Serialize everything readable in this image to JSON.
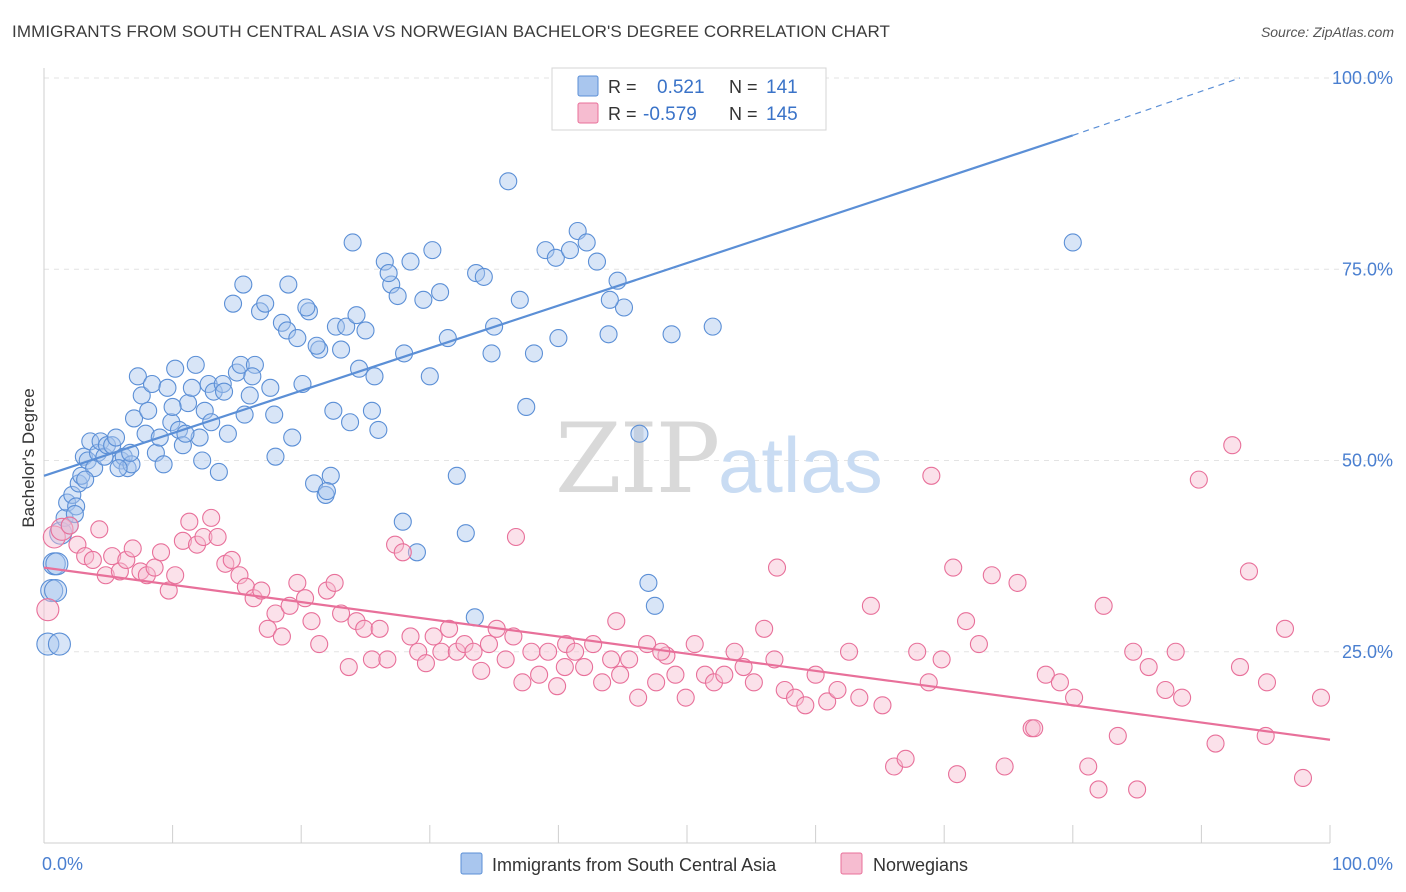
{
  "title": "IMMIGRANTS FROM SOUTH CENTRAL ASIA VS NORWEGIAN BACHELOR'S DEGREE CORRELATION CHART",
  "source": "Source: ZipAtlas.com",
  "watermark": {
    "zip": "ZIP",
    "atlas": "atlas"
  },
  "legend_top": {
    "rows": [
      {
        "r_label": "R =",
        "r_value": "0.521",
        "n_label": "N =",
        "n_value": "141",
        "color": "#7aaae8"
      },
      {
        "r_label": "R =",
        "r_value": "-0.579",
        "n_label": "N =",
        "n_value": "145",
        "color": "#f4a7c0"
      }
    ]
  },
  "legend_bottom": [
    {
      "label": "Immigrants from South Central Asia",
      "color": "#7aaae8"
    },
    {
      "label": "Norwegians",
      "color": "#f4a7c0"
    }
  ],
  "chart_data": {
    "type": "scatter",
    "ylabel": "Bachelor's Degree",
    "xlim": [
      0,
      100
    ],
    "ylim": [
      0,
      100
    ],
    "x_tick_labels": [
      "0.0%",
      "100.0%"
    ],
    "y_ticks": [
      25,
      50,
      75,
      100
    ],
    "y_tick_labels": [
      "25.0%",
      "50.0%",
      "75.0%",
      "100.0%"
    ],
    "grid": true,
    "series": [
      {
        "name": "Immigrants from South Central Asia",
        "color": "#5b8fd6",
        "fill": "#a9c6ee",
        "trend": {
          "x0": 0,
          "y0": 48,
          "x1": 80,
          "y1": 92.5,
          "dash_to_x": 93,
          "dash_to_y": 100
        },
        "points": [
          [
            0.3,
            26
          ],
          [
            0.6,
            33
          ],
          [
            0.8,
            36.5
          ],
          [
            1,
            36.5
          ],
          [
            1.3,
            40.5
          ],
          [
            1.6,
            42.5
          ],
          [
            1.8,
            44.5
          ],
          [
            2,
            41.5
          ],
          [
            2.2,
            45.5
          ],
          [
            2.5,
            44
          ],
          [
            2.7,
            47
          ],
          [
            2.9,
            48
          ],
          [
            3.1,
            50.5
          ],
          [
            3.4,
            50
          ],
          [
            3.6,
            52.5
          ],
          [
            3.9,
            49
          ],
          [
            4.2,
            51
          ],
          [
            4.4,
            52.5
          ],
          [
            4.7,
            50.5
          ],
          [
            4.9,
            52
          ],
          [
            5.3,
            52
          ],
          [
            5.6,
            53
          ],
          [
            6,
            50
          ],
          [
            6.2,
            50.5
          ],
          [
            6.5,
            49
          ],
          [
            6.8,
            49.5
          ],
          [
            7,
            55.5
          ],
          [
            7.3,
            61
          ],
          [
            7.6,
            58.5
          ],
          [
            7.9,
            53.5
          ],
          [
            8.1,
            56.5
          ],
          [
            8.4,
            60
          ],
          [
            8.7,
            51
          ],
          [
            9,
            53
          ],
          [
            9.3,
            49.5
          ],
          [
            9.6,
            59.5
          ],
          [
            9.9,
            55
          ],
          [
            10.2,
            62
          ],
          [
            10.5,
            54
          ],
          [
            10.8,
            52
          ],
          [
            11.2,
            57.5
          ],
          [
            11.5,
            59.5
          ],
          [
            11.8,
            62.5
          ],
          [
            12.1,
            53
          ],
          [
            12.5,
            56.5
          ],
          [
            12.8,
            60
          ],
          [
            13.2,
            59
          ],
          [
            13.6,
            48.5
          ],
          [
            13.9,
            60
          ],
          [
            14.3,
            53.5
          ],
          [
            14.7,
            70.5
          ],
          [
            15,
            61.5
          ],
          [
            15.3,
            62.5
          ],
          [
            15.6,
            56
          ],
          [
            16,
            58.5
          ],
          [
            16.4,
            62.5
          ],
          [
            16.8,
            69.5
          ],
          [
            17.2,
            70.5
          ],
          [
            17.6,
            59.5
          ],
          [
            18,
            50.5
          ],
          [
            18.5,
            68
          ],
          [
            18.9,
            67
          ],
          [
            19.3,
            53
          ],
          [
            19.7,
            66
          ],
          [
            20.1,
            60
          ],
          [
            20.6,
            69.5
          ],
          [
            21,
            47
          ],
          [
            21.4,
            64.5
          ],
          [
            21.9,
            45.5
          ],
          [
            22.3,
            48
          ],
          [
            22.7,
            67.5
          ],
          [
            23.1,
            64.5
          ],
          [
            23.5,
            67.5
          ],
          [
            24,
            78.5
          ],
          [
            24.5,
            62
          ],
          [
            25,
            67
          ],
          [
            25.5,
            56.5
          ],
          [
            26,
            54
          ],
          [
            26.5,
            76
          ],
          [
            27,
            73
          ],
          [
            27.5,
            71.5
          ],
          [
            28,
            64
          ],
          [
            28.5,
            76
          ],
          [
            29,
            38
          ],
          [
            29.5,
            71
          ],
          [
            30.2,
            77.5
          ],
          [
            30.8,
            72
          ],
          [
            31.4,
            66
          ],
          [
            32.1,
            48
          ],
          [
            32.8,
            40.5
          ],
          [
            33.6,
            74.5
          ],
          [
            34.2,
            74
          ],
          [
            35,
            67.5
          ],
          [
            36.1,
            86.5
          ],
          [
            37,
            71
          ],
          [
            38.1,
            64
          ],
          [
            39,
            77.5
          ],
          [
            39.8,
            76.5
          ],
          [
            40.9,
            77.5
          ],
          [
            41.5,
            80
          ],
          [
            42.2,
            78.5
          ],
          [
            43,
            76
          ],
          [
            43.9,
            66.5
          ],
          [
            44.6,
            73.5
          ],
          [
            45.1,
            70
          ],
          [
            46.3,
            53.5
          ],
          [
            47,
            34
          ],
          [
            47.5,
            31
          ],
          [
            48.8,
            66.5
          ],
          [
            52,
            67.5
          ],
          [
            33.5,
            29.5
          ],
          [
            1.2,
            26
          ],
          [
            0.9,
            33
          ],
          [
            2.4,
            43
          ],
          [
            3.2,
            47.5
          ],
          [
            5.8,
            49
          ],
          [
            6.7,
            51
          ],
          [
            10,
            57
          ],
          [
            11,
            53.5
          ],
          [
            12.3,
            50
          ],
          [
            13,
            55
          ],
          [
            14,
            59
          ],
          [
            16.2,
            61
          ],
          [
            17.9,
            56
          ],
          [
            20.4,
            70
          ],
          [
            22,
            46
          ],
          [
            24.3,
            69
          ],
          [
            25.7,
            61
          ],
          [
            26.8,
            74.5
          ],
          [
            19,
            73
          ],
          [
            15.5,
            73
          ],
          [
            22.5,
            56.5
          ],
          [
            30,
            61
          ],
          [
            34.8,
            64
          ],
          [
            37.5,
            57
          ],
          [
            40,
            66
          ],
          [
            44,
            71
          ],
          [
            21.2,
            65
          ],
          [
            23.8,
            55
          ],
          [
            27.9,
            42
          ],
          [
            80,
            78.5
          ]
        ]
      },
      {
        "name": "Norwegians",
        "color": "#e8709a",
        "fill": "#f6bcd0",
        "trend": {
          "x0": 0,
          "y0": 36,
          "x1": 100,
          "y1": 13.5
        },
        "points": [
          [
            0.3,
            30.5
          ],
          [
            0.8,
            40
          ],
          [
            1.4,
            41
          ],
          [
            2,
            41.5
          ],
          [
            2.6,
            39
          ],
          [
            3.2,
            37.5
          ],
          [
            3.8,
            37
          ],
          [
            4.3,
            41
          ],
          [
            4.8,
            35
          ],
          [
            5.3,
            37.5
          ],
          [
            5.9,
            35.5
          ],
          [
            6.4,
            37
          ],
          [
            6.9,
            38.5
          ],
          [
            7.5,
            35.5
          ],
          [
            8,
            35
          ],
          [
            8.6,
            36
          ],
          [
            9.1,
            38
          ],
          [
            9.7,
            33
          ],
          [
            10.2,
            35
          ],
          [
            10.8,
            39.5
          ],
          [
            11.3,
            42
          ],
          [
            11.9,
            39
          ],
          [
            12.4,
            40
          ],
          [
            13,
            42.5
          ],
          [
            13.5,
            40
          ],
          [
            14.1,
            36.5
          ],
          [
            14.6,
            37
          ],
          [
            15.2,
            35
          ],
          [
            15.7,
            33.5
          ],
          [
            16.3,
            32
          ],
          [
            16.9,
            33
          ],
          [
            17.4,
            28
          ],
          [
            18,
            30
          ],
          [
            18.5,
            27
          ],
          [
            19.1,
            31
          ],
          [
            19.7,
            34
          ],
          [
            20.3,
            32
          ],
          [
            20.8,
            29
          ],
          [
            21.4,
            26
          ],
          [
            22,
            33
          ],
          [
            22.6,
            34
          ],
          [
            23.1,
            30
          ],
          [
            23.7,
            23
          ],
          [
            24.3,
            29
          ],
          [
            24.9,
            28
          ],
          [
            25.5,
            24
          ],
          [
            26.1,
            28
          ],
          [
            26.7,
            24
          ],
          [
            27.3,
            39
          ],
          [
            27.9,
            38
          ],
          [
            28.5,
            27
          ],
          [
            29.1,
            25
          ],
          [
            29.7,
            23.5
          ],
          [
            30.3,
            27
          ],
          [
            30.9,
            25
          ],
          [
            31.5,
            28
          ],
          [
            32.1,
            25
          ],
          [
            32.7,
            26
          ],
          [
            33.4,
            25
          ],
          [
            34,
            22.5
          ],
          [
            34.6,
            26
          ],
          [
            35.2,
            28
          ],
          [
            35.9,
            24
          ],
          [
            36.5,
            27
          ],
          [
            37.2,
            21
          ],
          [
            37.9,
            25
          ],
          [
            38.5,
            22
          ],
          [
            39.2,
            25
          ],
          [
            39.9,
            20.5
          ],
          [
            40.6,
            26
          ],
          [
            41.3,
            25
          ],
          [
            42,
            23
          ],
          [
            42.7,
            26
          ],
          [
            43.4,
            21
          ],
          [
            44.1,
            24
          ],
          [
            44.8,
            22
          ],
          [
            45.5,
            24
          ],
          [
            46.2,
            19
          ],
          [
            46.9,
            26
          ],
          [
            47.6,
            21
          ],
          [
            48.4,
            24.5
          ],
          [
            49.1,
            22
          ],
          [
            49.9,
            19
          ],
          [
            50.6,
            26
          ],
          [
            51.4,
            22
          ],
          [
            52.1,
            21
          ],
          [
            52.9,
            22
          ],
          [
            53.7,
            25
          ],
          [
            54.4,
            23
          ],
          [
            55.2,
            21
          ],
          [
            56,
            28
          ],
          [
            56.8,
            24
          ],
          [
            57.6,
            20
          ],
          [
            58.4,
            19
          ],
          [
            59.2,
            18
          ],
          [
            60,
            22
          ],
          [
            60.9,
            18.5
          ],
          [
            61.7,
            20
          ],
          [
            62.6,
            25
          ],
          [
            63.4,
            19
          ],
          [
            64.3,
            31
          ],
          [
            65.2,
            18
          ],
          [
            66.1,
            10
          ],
          [
            67,
            11
          ],
          [
            67.9,
            25
          ],
          [
            68.8,
            21
          ],
          [
            69.8,
            24
          ],
          [
            70.7,
            36
          ],
          [
            71.7,
            29
          ],
          [
            72.7,
            26
          ],
          [
            73.7,
            35
          ],
          [
            74.7,
            10
          ],
          [
            75.7,
            34
          ],
          [
            76.8,
            15
          ],
          [
            77.9,
            22
          ],
          [
            79,
            21
          ],
          [
            80.1,
            19
          ],
          [
            81.2,
            10
          ],
          [
            82.4,
            31
          ],
          [
            83.5,
            14
          ],
          [
            84.7,
            25
          ],
          [
            85.9,
            23
          ],
          [
            87.2,
            20
          ],
          [
            88.5,
            19
          ],
          [
            89.8,
            47.5
          ],
          [
            91.1,
            13
          ],
          [
            92.4,
            52
          ],
          [
            93.7,
            35.5
          ],
          [
            95.1,
            21
          ],
          [
            96.5,
            28
          ],
          [
            97.9,
            8.5
          ],
          [
            99.3,
            19
          ],
          [
            95,
            14
          ],
          [
            93,
            23
          ],
          [
            85,
            7
          ],
          [
            82,
            7
          ],
          [
            69,
            48
          ],
          [
            71,
            9
          ],
          [
            77,
            15
          ],
          [
            88,
            25
          ],
          [
            57,
            36
          ],
          [
            40.5,
            23
          ],
          [
            44.5,
            29
          ],
          [
            48,
            25
          ],
          [
            36.7,
            40
          ]
        ]
      }
    ]
  }
}
